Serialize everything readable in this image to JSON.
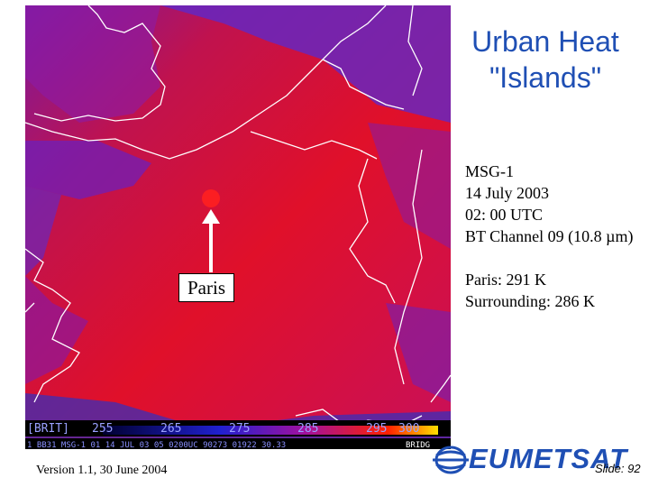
{
  "title": "Urban Heat \"Islands\"",
  "satellite_image": {
    "annotation": "Paris",
    "colorbar": {
      "label": "[BRIT]",
      "ticks": [
        "255",
        "265",
        "275",
        "285",
        "295",
        "300"
      ]
    },
    "info_strip": "1 BB31 MSG-1  01 14 JUL 03 05 0200UC 90273 01922 30.33",
    "info_strip_right": "BRIDG"
  },
  "details": {
    "satellite": "MSG-1",
    "date": "14 July 2003",
    "time": "02: 00 UTC",
    "channel": "BT Channel 09 (10.8 µm)",
    "paris_temp": "Paris: 291 K",
    "surrounding_temp": "Surrounding: 286 K"
  },
  "footer": {
    "version": "Version 1.1, 30 June 2004",
    "logo": "EUMETSAT",
    "slide": "Slide: 92"
  }
}
